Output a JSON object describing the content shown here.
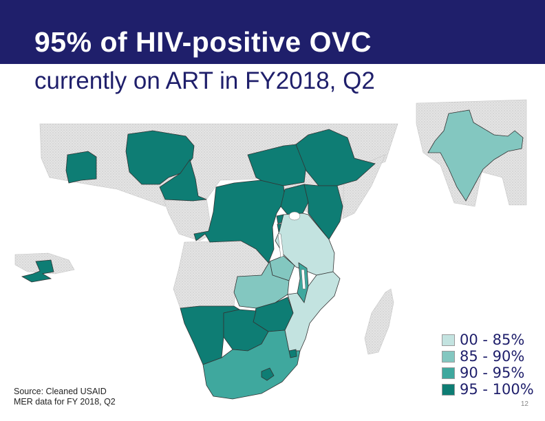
{
  "slide": {
    "title_line1": "95% of HIV-positive OVC",
    "title_line2": "currently on ART in FY2018, Q2",
    "source_line1": "Source: Cleaned USAID",
    "source_line2": "MER data for FY 2018, Q2",
    "page_number": "12"
  },
  "legend": [
    {
      "label": "00 - 85%",
      "color": "#c3e3e0"
    },
    {
      "label": "85 - 90%",
      "color": "#83c7c0"
    },
    {
      "label": "90 - 95%",
      "color": "#3fa89e"
    },
    {
      "label": "95 - 100%",
      "color": "#0e7d74"
    }
  ],
  "colors": {
    "title_bar": "#1f1f6b",
    "no_data": "#e1e1e1",
    "border": "#333333"
  },
  "regions": [
    {
      "name": "Cote d'Ivoire",
      "class": "95 - 100%"
    },
    {
      "name": "Nigeria",
      "class": "95 - 100%"
    },
    {
      "name": "Cameroon",
      "class": "95 - 100%"
    },
    {
      "name": "South Sudan",
      "class": "95 - 100%"
    },
    {
      "name": "Ethiopia",
      "class": "95 - 100%"
    },
    {
      "name": "DR Congo",
      "class": "95 - 100%"
    },
    {
      "name": "Uganda",
      "class": "95 - 100%"
    },
    {
      "name": "Kenya",
      "class": "95 - 100%"
    },
    {
      "name": "Rwanda",
      "class": "95 - 100%"
    },
    {
      "name": "Burundi",
      "class": "95 - 100%"
    },
    {
      "name": "Tanzania",
      "class": "00 - 85%"
    },
    {
      "name": "Zambia",
      "class": "85 - 90%"
    },
    {
      "name": "DRC-Zambia border area",
      "class": "85 - 90%"
    },
    {
      "name": "Malawi",
      "class": "90 - 95%"
    },
    {
      "name": "Mozambique",
      "class": "00 - 85%"
    },
    {
      "name": "Zimbabwe",
      "class": "95 - 100%"
    },
    {
      "name": "Namibia",
      "class": "95 - 100%"
    },
    {
      "name": "Botswana",
      "class": "95 - 100%"
    },
    {
      "name": "South Africa",
      "class": "90 - 95%"
    },
    {
      "name": "Lesotho",
      "class": "95 - 100%"
    },
    {
      "name": "Eswatini",
      "class": "95 - 100%"
    },
    {
      "name": "Haiti",
      "class": "95 - 100%"
    },
    {
      "name": "India",
      "class": "85 - 90%"
    }
  ]
}
